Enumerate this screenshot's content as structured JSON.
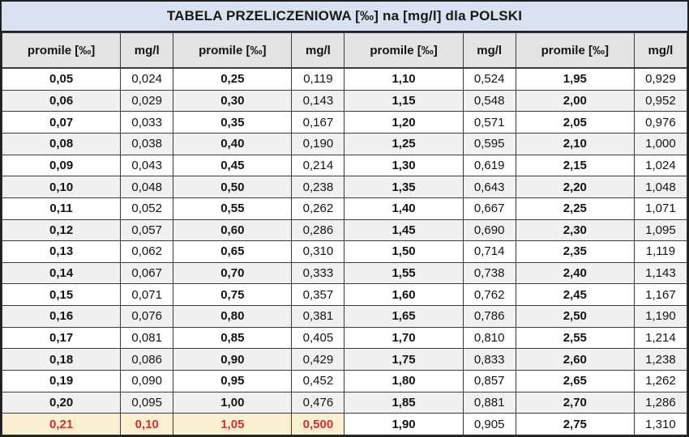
{
  "title": "TABELA PRZELICZENIOWA [‰] na [mg/l] dla POLSKI",
  "table": {
    "column_headers": [
      "promile [‰]",
      "mg/l",
      "promile [‰]",
      "mg/l",
      "promile [‰]",
      "mg/l",
      "promile [‰]",
      "mg/l"
    ],
    "rows": [
      [
        "0,05",
        "0,024",
        "0,25",
        "0,119",
        "1,10",
        "0,524",
        "1,95",
        "0,929"
      ],
      [
        "0,06",
        "0,029",
        "0,30",
        "0,143",
        "1,15",
        "0,548",
        "2,00",
        "0,952"
      ],
      [
        "0,07",
        "0,033",
        "0,35",
        "0,167",
        "1,20",
        "0,571",
        "2,05",
        "0,976"
      ],
      [
        "0,08",
        "0,038",
        "0,40",
        "0,190",
        "1,25",
        "0,595",
        "2,10",
        "1,000"
      ],
      [
        "0,09",
        "0,043",
        "0,45",
        "0,214",
        "1,30",
        "0,619",
        "2,15",
        "1,024"
      ],
      [
        "0,10",
        "0,048",
        "0,50",
        "0,238",
        "1,35",
        "0,643",
        "2,20",
        "1,048"
      ],
      [
        "0,11",
        "0,052",
        "0,55",
        "0,262",
        "1,40",
        "0,667",
        "2,25",
        "1,071"
      ],
      [
        "0,12",
        "0,057",
        "0,60",
        "0,286",
        "1,45",
        "0,690",
        "2,30",
        "1,095"
      ],
      [
        "0,13",
        "0,062",
        "0,65",
        "0,310",
        "1,50",
        "0,714",
        "2,35",
        "1,119"
      ],
      [
        "0,14",
        "0,067",
        "0,70",
        "0,333",
        "1,55",
        "0,738",
        "2,40",
        "1,143"
      ],
      [
        "0,15",
        "0,071",
        "0,75",
        "0,357",
        "1,60",
        "0,762",
        "2,45",
        "1,167"
      ],
      [
        "0,16",
        "0,076",
        "0,80",
        "0,381",
        "1,65",
        "0,786",
        "2,50",
        "1,190"
      ],
      [
        "0,17",
        "0,081",
        "0,85",
        "0,405",
        "1,70",
        "0,810",
        "2,55",
        "1,214"
      ],
      [
        "0,18",
        "0,086",
        "0,90",
        "0,429",
        "1,75",
        "0,833",
        "2,60",
        "1,238"
      ],
      [
        "0,19",
        "0,090",
        "0,95",
        "0,452",
        "1,80",
        "0,857",
        "2,65",
        "1,262"
      ],
      [
        "0,20",
        "0,095",
        "1,00",
        "0,476",
        "1,85",
        "0,881",
        "2,70",
        "1,286"
      ],
      [
        "0,21",
        "0,10",
        "1,05",
        "0,500",
        "1,90",
        "0,905",
        "2,75",
        "1,310"
      ]
    ],
    "highlight": {
      "row_index": 16,
      "columns": [
        0,
        1,
        2,
        3
      ]
    }
  },
  "colors": {
    "title_bg": "#D9E2F0",
    "header_bg": "#E3E3E3",
    "stripe_bg": "#F0F0F0",
    "highlight_bg": "#FBEFD2",
    "highlight_text": "#D22F2F",
    "border": "#3C3C3C",
    "outer_border": "#1F1F1F"
  }
}
